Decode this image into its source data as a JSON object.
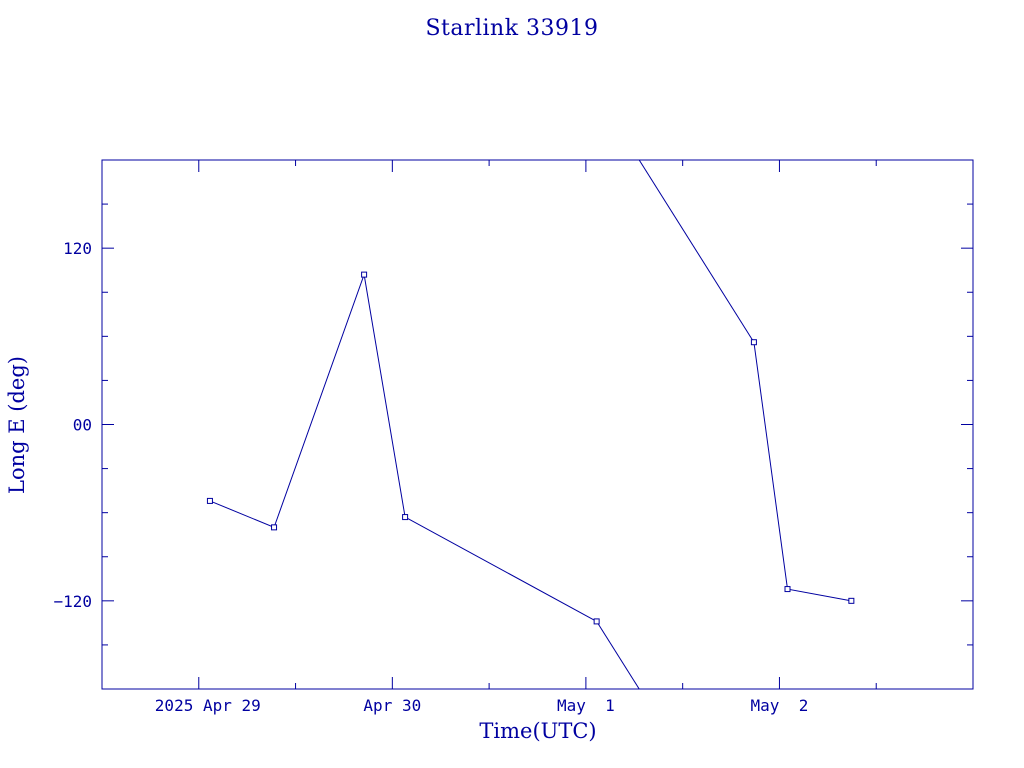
{
  "chart_data": {
    "type": "line",
    "title": "Starlink 33919",
    "xlabel": "Time(UTC)",
    "ylabel": "Long E (deg)",
    "x_tick_labels": [
      "2025 Apr 29",
      "Apr 30",
      "May  1",
      "May  2"
    ],
    "x_tick_dates": [
      "2025-04-29",
      "2025-04-30",
      "2025-05-01",
      "2025-05-02"
    ],
    "y_tick_labels": [
      "120",
      "00",
      "−120"
    ],
    "y_tick_values": [
      120,
      0,
      -120
    ],
    "xlim": [
      "2025-04-28T12:00",
      "2025-05-03T00:00"
    ],
    "ylim": [
      -180,
      180
    ],
    "grid": false,
    "series": [
      {
        "marker": "square",
        "color": "#0000a0",
        "points": [
          {
            "x": "2025-04-29T01:23",
            "y": -52
          },
          {
            "x": "2025-04-29T09:20",
            "y": -70
          },
          {
            "x": "2025-04-29T20:30",
            "y": 102
          },
          {
            "x": "2025-04-30T01:35",
            "y": -63
          },
          {
            "x": "2025-05-01T01:20",
            "y": -134
          }
        ]
      },
      {
        "marker": "square",
        "color": "#0000a0",
        "points": [
          {
            "x": "2025-05-01T20:50",
            "y": 56
          },
          {
            "x": "2025-05-02T01:00",
            "y": -112
          },
          {
            "x": "2025-05-02T08:55",
            "y": -120
          }
        ]
      }
    ],
    "wrap_connectors": [
      {
        "from": {
          "x": "2025-05-01T01:20",
          "y": -134
        },
        "to": {
          "x": "2025-05-01T20:50",
          "y": 56
        }
      }
    ]
  }
}
